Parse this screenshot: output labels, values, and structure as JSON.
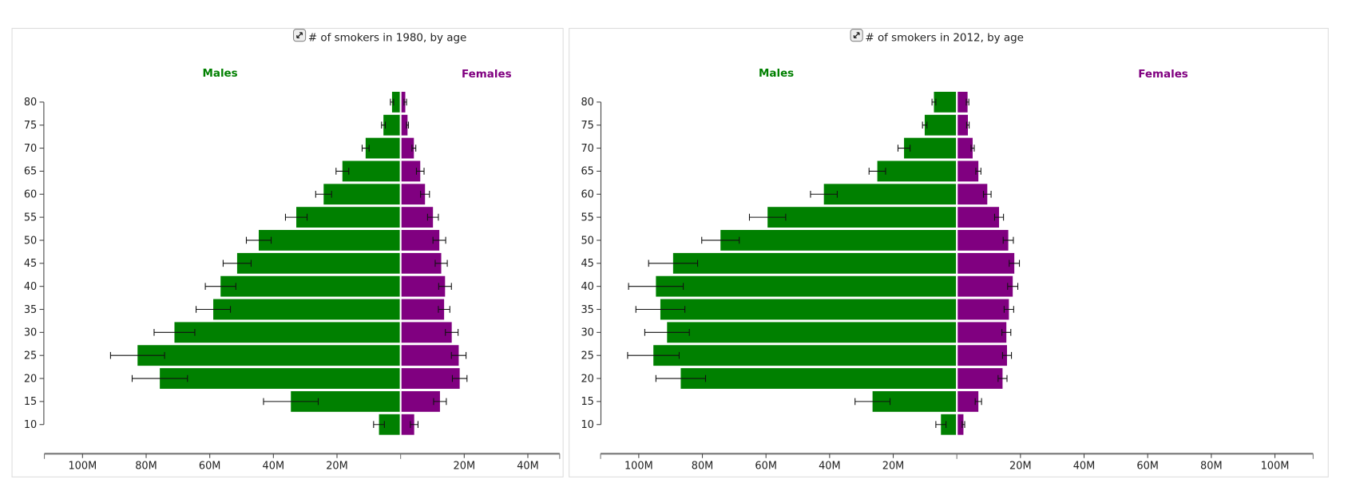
{
  "colors": {
    "males": "#008000",
    "females": "#800080",
    "axis": "#777777",
    "panel_border": "#dddddd"
  },
  "chart_data": [
    {
      "type": "bar",
      "subtype": "population-pyramid",
      "title": "# of smokers in 1980, by age",
      "title_icon": "expand-icon",
      "categories": [
        80,
        75,
        70,
        65,
        60,
        55,
        50,
        45,
        40,
        35,
        30,
        25,
        20,
        15,
        10
      ],
      "y_tick_labels": [
        "80",
        "75",
        "70",
        "65",
        "60",
        "55",
        "50",
        "45",
        "40",
        "35",
        "30",
        "25",
        "20",
        "15",
        "10"
      ],
      "x_tick_labels_left": [
        "100M",
        "80M",
        "60M",
        "40M",
        "20M"
      ],
      "x_tick_labels_right": [
        "20M",
        "40M"
      ],
      "xlim_millions": {
        "males": 112,
        "females": 50
      },
      "units": "millions",
      "series": [
        {
          "name": "Males",
          "color": "#008000",
          "values": [
            2.7,
            5.4,
            11.0,
            18.3,
            24.2,
            32.8,
            44.6,
            51.4,
            56.6,
            58.9,
            71.1,
            82.7,
            75.7,
            34.5,
            6.8
          ],
          "errors": [
            0.5,
            0.6,
            1.1,
            2.0,
            2.5,
            3.4,
            3.9,
            4.4,
            4.8,
            5.4,
            6.4,
            8.5,
            8.7,
            8.6,
            1.7
          ]
        },
        {
          "name": "Females",
          "color": "#800080",
          "values": [
            1.2,
            1.9,
            3.9,
            5.9,
            7.4,
            9.9,
            11.9,
            12.5,
            13.7,
            13.4,
            15.8,
            18.0,
            18.3,
            12.1,
            4.0
          ],
          "errors": [
            0.4,
            0.3,
            0.6,
            1.2,
            1.4,
            1.7,
            2.0,
            1.9,
            2.0,
            1.8,
            2.0,
            2.3,
            2.3,
            2.0,
            1.2
          ]
        }
      ]
    },
    {
      "type": "bar",
      "subtype": "population-pyramid",
      "title": "# of smokers in 2012, by age",
      "title_icon": "expand-icon",
      "categories": [
        80,
        75,
        70,
        65,
        60,
        55,
        50,
        45,
        40,
        35,
        30,
        25,
        20,
        15,
        10
      ],
      "y_tick_labels": [
        "80",
        "75",
        "70",
        "65",
        "60",
        "55",
        "50",
        "45",
        "40",
        "35",
        "30",
        "25",
        "20",
        "15",
        "10"
      ],
      "x_tick_labels_left": [
        "100M",
        "80M",
        "60M",
        "40M",
        "20M"
      ],
      "x_tick_labels_right": [
        "20M",
        "40M",
        "60M",
        "80M",
        "100M"
      ],
      "xlim_millions": {
        "males": 112,
        "females": 112
      },
      "units": "millions",
      "series": [
        {
          "name": "Males",
          "color": "#008000",
          "values": [
            7.2,
            10.1,
            16.6,
            25.0,
            41.8,
            59.5,
            74.3,
            89.2,
            94.6,
            93.2,
            91.1,
            95.4,
            86.8,
            26.5,
            5.0
          ],
          "errors": [
            0.6,
            0.7,
            1.9,
            2.6,
            4.2,
            5.7,
            5.9,
            7.7,
            8.6,
            7.7,
            7.0,
            8.1,
            7.8,
            5.5,
            1.6
          ]
        },
        {
          "name": "Females",
          "color": "#800080",
          "values": [
            3.1,
            3.2,
            4.7,
            6.5,
            9.3,
            13.0,
            15.9,
            17.8,
            17.3,
            16.1,
            15.3,
            15.5,
            14.1,
            6.5,
            1.8
          ],
          "errors": [
            0.4,
            0.4,
            0.5,
            0.8,
            1.2,
            1.4,
            1.6,
            1.6,
            1.6,
            1.5,
            1.4,
            1.4,
            1.4,
            1.0,
            0.4
          ]
        }
      ]
    }
  ]
}
